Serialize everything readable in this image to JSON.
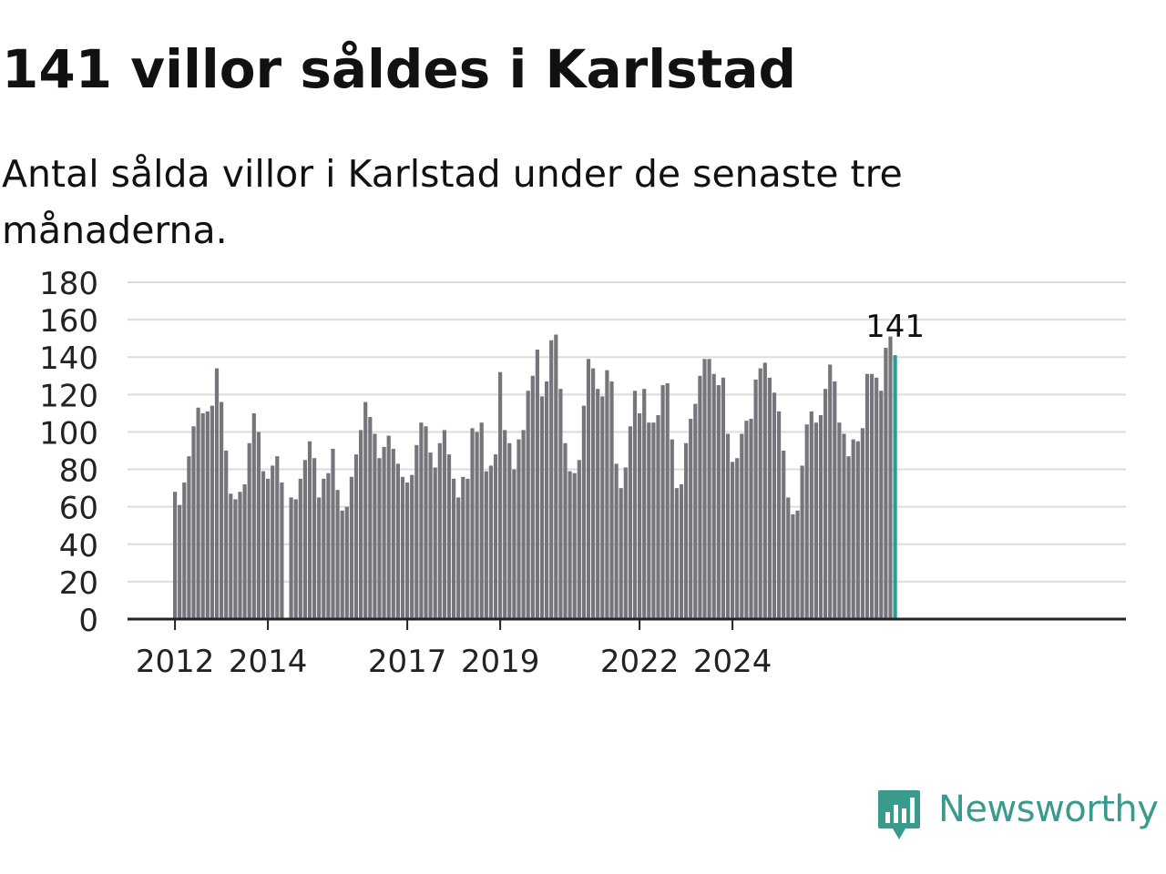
{
  "title": "141 villor såldes i Karlstad",
  "subtitle": "Antal sålda villor i Karlstad under de senaste tre månaderna.",
  "brand": {
    "name": "Newsworthy",
    "color": "#3a9a8e",
    "icon": "newsworthy-chart-bubble-icon"
  },
  "chart_data": {
    "type": "bar",
    "title": "141 villor såldes i Karlstad",
    "subtitle": "Antal sålda villor i Karlstad under de senaste tre månaderna.",
    "ylim": [
      0,
      180
    ],
    "yticks": [
      0,
      20,
      40,
      60,
      80,
      100,
      120,
      140,
      160,
      180
    ],
    "grid": true,
    "xticks": [
      {
        "label": "2012",
        "index": 0
      },
      {
        "label": "2014",
        "index": 20
      },
      {
        "label": "2017",
        "index": 50
      },
      {
        "label": "2019",
        "index": 70
      },
      {
        "label": "2022",
        "index": 100
      },
      {
        "label": "2024",
        "index": 120
      }
    ],
    "values": [
      68,
      61,
      73,
      87,
      103,
      113,
      110,
      111,
      114,
      134,
      116,
      90,
      67,
      64,
      68,
      72,
      94,
      110,
      100,
      79,
      75,
      82,
      87,
      73,
      null,
      65,
      64,
      75,
      85,
      95,
      86,
      65,
      75,
      78,
      91,
      69,
      58,
      60,
      76,
      88,
      101,
      116,
      108,
      99,
      86,
      92,
      98,
      91,
      83,
      76,
      73,
      77,
      93,
      105,
      103,
      89,
      81,
      94,
      101,
      88,
      75,
      65,
      76,
      75,
      102,
      100,
      105,
      79,
      82,
      88,
      132,
      101,
      94,
      80,
      96,
      101,
      122,
      130,
      144,
      119,
      127,
      149,
      152,
      123,
      94,
      79,
      78,
      85,
      114,
      139,
      134,
      123,
      119,
      133,
      127,
      83,
      70,
      81,
      103,
      122,
      110,
      123,
      105,
      105,
      109,
      125,
      126,
      96,
      70,
      72,
      94,
      107,
      115,
      130,
      139,
      139,
      131,
      125,
      129,
      99,
      84,
      86,
      99,
      106,
      107,
      128,
      134,
      137,
      129,
      121,
      111,
      90,
      65,
      56,
      58,
      82,
      104,
      111,
      105,
      109,
      123,
      136,
      127,
      105,
      99,
      87,
      96,
      95,
      102,
      131,
      131,
      129,
      122,
      145,
      151,
      141
    ],
    "highlight": {
      "value": 141,
      "label": "141",
      "color": "#2a9d8f"
    },
    "bar_color": "#76757b",
    "axis_color": "#222222",
    "grid_color": "#dcdcdc"
  }
}
